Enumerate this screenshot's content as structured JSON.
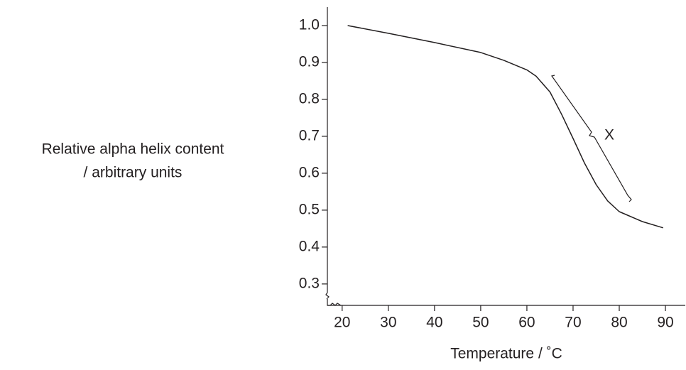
{
  "chart_data": {
    "type": "line",
    "ylabel": [
      "Relative alpha helix content",
      "/ arbitrary units"
    ],
    "xlabel": "Temperature / ˚C",
    "annotations": [
      "X"
    ],
    "color": "#231f20",
    "x": [
      21.2,
      30,
      40,
      50,
      55,
      60,
      62,
      65,
      67.5,
      70,
      72.5,
      75,
      77.5,
      80,
      85,
      89.5
    ],
    "values": [
      1.0,
      0.979,
      0.954,
      0.927,
      0.906,
      0.88,
      0.863,
      0.82,
      0.76,
      0.694,
      0.627,
      0.569,
      0.525,
      0.496,
      0.469,
      0.452
    ],
    "xlim": [
      16.8,
      94.3
    ],
    "ylim": [
      0.242,
      1.05
    ],
    "xticks": [
      20,
      30,
      40,
      50,
      60,
      70,
      80,
      90
    ],
    "yticks": [
      0.3,
      0.4,
      0.5,
      0.6,
      0.7,
      0.8,
      0.9,
      {
        "value": 1,
        "label": "1.0"
      }
    ],
    "grid": false
  }
}
